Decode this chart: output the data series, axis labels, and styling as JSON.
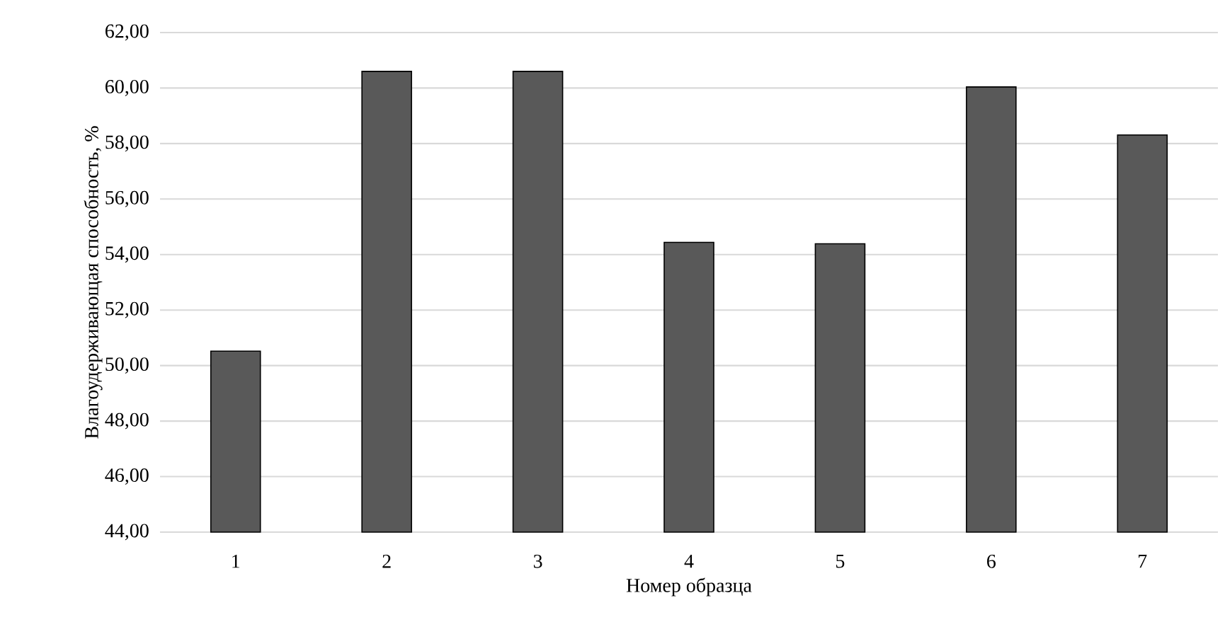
{
  "chart_data": {
    "type": "bar",
    "xlabel": "Номер образца",
    "ylabel": "Влагоудерживающая способность, %",
    "categories": [
      "1",
      "2",
      "3",
      "4",
      "5",
      "6",
      "7"
    ],
    "values": [
      50.52,
      60.6,
      60.6,
      54.44,
      54.39,
      60.04,
      58.31
    ],
    "color": "#595959",
    "ylim": [
      44,
      62
    ],
    "yticks": [
      {
        "value": 44,
        "label": "44,00"
      },
      {
        "value": 46,
        "label": "46,00"
      },
      {
        "value": 48,
        "label": "48,00"
      },
      {
        "value": 50,
        "label": "50,00"
      },
      {
        "value": 52,
        "label": "52,00"
      },
      {
        "value": 54,
        "label": "54,00"
      },
      {
        "value": 56,
        "label": "56,00"
      },
      {
        "value": 58,
        "label": "58,00"
      },
      {
        "value": 60,
        "label": "60,00"
      },
      {
        "value": 62,
        "label": "62,00"
      }
    ],
    "grid": "y"
  }
}
